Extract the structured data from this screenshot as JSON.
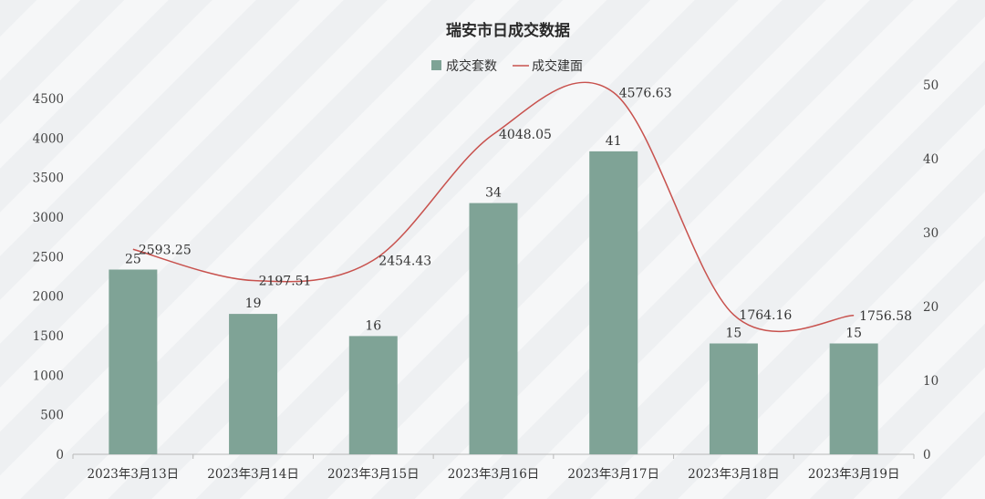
{
  "chart_data": {
    "type": "bar",
    "title": "瑞安市日成交数据",
    "categories": [
      "2023年3月13日",
      "2023年3月14日",
      "2023年3月15日",
      "2023年3月16日",
      "2023年3月17日",
      "2023年3月18日",
      "2023年3月19日"
    ],
    "series": [
      {
        "name": "成交套数",
        "type": "bar",
        "axis": "right",
        "values": [
          25,
          19,
          16,
          34,
          41,
          15,
          15
        ],
        "color": "#7fa396"
      },
      {
        "name": "成交建面",
        "type": "line",
        "axis": "left",
        "smooth": true,
        "values": [
          2593.25,
          2197.51,
          2454.43,
          4048.05,
          4576.63,
          1764.16,
          1756.58
        ],
        "labels": [
          "2593.25",
          "2197.51",
          "2454.43",
          "4048.05",
          "4576.63",
          "1764.16",
          "1756.58"
        ],
        "color": "#c8524e"
      }
    ],
    "y_left": {
      "ylim": [
        0,
        4500
      ],
      "ticks": [
        0,
        500,
        1000,
        1500,
        2000,
        2500,
        3000,
        3500,
        4000,
        4500
      ]
    },
    "y_right": {
      "ylim": [
        0,
        50
      ],
      "ticks": [
        0,
        10,
        20,
        30,
        40,
        50
      ]
    },
    "legend": "top-center",
    "grid": false
  }
}
